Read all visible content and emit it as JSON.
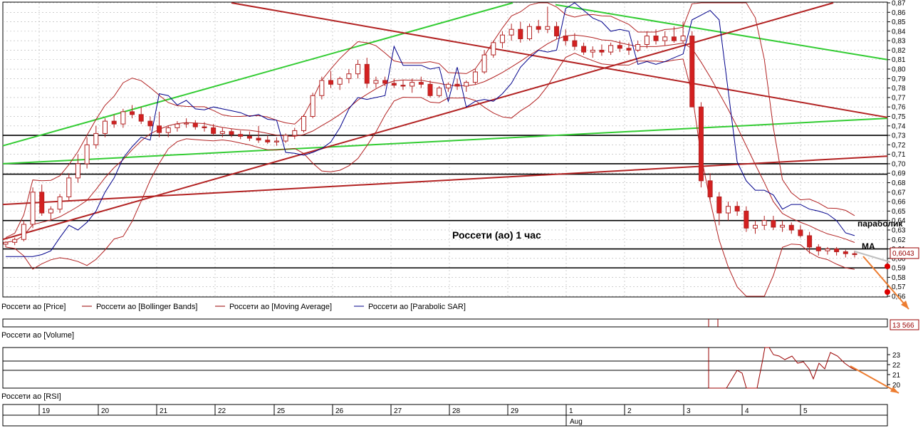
{
  "chart_data": {
    "type": "candlestick",
    "title": "Россети (ао)   1 час",
    "legend": [
      {
        "label": "Россети ао [Price]",
        "color": "#9a0000"
      },
      {
        "label": "Россети ао [Bollinger Bands]",
        "color": "#9a0000"
      },
      {
        "label": "Россети ао [Moving Average]",
        "color": "#9a0000"
      },
      {
        "label": "Россети ао [Parabolic SAR]",
        "color": "#00008b"
      }
    ],
    "price_axis": {
      "min": 0.56,
      "max": 0.87,
      "ticks": [
        "0,87",
        "0,86",
        "0,85",
        "0,84",
        "0,83",
        "0,82",
        "0,81",
        "0,80",
        "0,79",
        "0,78",
        "0,77",
        "0,76",
        "0,75",
        "0,74",
        "0,73",
        "0,72",
        "0,71",
        "0,70",
        "0,69",
        "0,68",
        "0,67",
        "0,66",
        "0,65",
        "0,64",
        "0,63",
        "0,62",
        "0,61",
        "0,60",
        "0,59",
        "0,58",
        "0,57",
        "0,56"
      ]
    },
    "last_price": "0,6043",
    "annotations": {
      "parabolic": "параболик",
      "ma": "МА"
    },
    "volume_label": "Россети ао [Volume]",
    "volume_value": "13 566",
    "rsi_label": "Россети ао [RSI]",
    "rsi_axis": {
      "ticks": [
        "23",
        "22",
        "21",
        "20"
      ],
      "levels": [
        22.5,
        20.5
      ]
    },
    "date_axis": {
      "labels": [
        "19",
        "20",
        "21",
        "22",
        "25",
        "26",
        "27",
        "28",
        "29",
        "1",
        "2",
        "3",
        "4",
        "5"
      ],
      "month_label": "Aug"
    },
    "horizontal_levels": [
      0.73,
      0.7,
      0.689,
      0.64,
      0.61,
      0.59
    ],
    "candles": [
      [
        0.615,
        0.618,
        0.612,
        0.617
      ],
      [
        0.617,
        0.622,
        0.614,
        0.62
      ],
      [
        0.62,
        0.64,
        0.618,
        0.636
      ],
      [
        0.636,
        0.675,
        0.632,
        0.67
      ],
      [
        0.67,
        0.678,
        0.645,
        0.648
      ],
      [
        0.648,
        0.655,
        0.64,
        0.652
      ],
      [
        0.652,
        0.668,
        0.648,
        0.665
      ],
      [
        0.665,
        0.69,
        0.66,
        0.685
      ],
      [
        0.685,
        0.71,
        0.68,
        0.7
      ],
      [
        0.7,
        0.728,
        0.695,
        0.72
      ],
      [
        0.72,
        0.74,
        0.716,
        0.732
      ],
      [
        0.732,
        0.748,
        0.728,
        0.745
      ],
      [
        0.745,
        0.752,
        0.738,
        0.742
      ],
      [
        0.742,
        0.758,
        0.738,
        0.755
      ],
      [
        0.755,
        0.762,
        0.748,
        0.752
      ],
      [
        0.752,
        0.76,
        0.742,
        0.745
      ],
      [
        0.745,
        0.75,
        0.735,
        0.74
      ],
      [
        0.74,
        0.755,
        0.728,
        0.733
      ],
      [
        0.733,
        0.74,
        0.728,
        0.738
      ],
      [
        0.738,
        0.745,
        0.734,
        0.742
      ],
      [
        0.742,
        0.748,
        0.738,
        0.743
      ],
      [
        0.743,
        0.746,
        0.736,
        0.739
      ],
      [
        0.739,
        0.744,
        0.734,
        0.738
      ],
      [
        0.738,
        0.742,
        0.73,
        0.732
      ],
      [
        0.732,
        0.738,
        0.728,
        0.734
      ],
      [
        0.734,
        0.737,
        0.728,
        0.731
      ],
      [
        0.731,
        0.735,
        0.726,
        0.729
      ],
      [
        0.729,
        0.734,
        0.724,
        0.727
      ],
      [
        0.727,
        0.74,
        0.722,
        0.725
      ],
      [
        0.725,
        0.73,
        0.721,
        0.723
      ],
      [
        0.723,
        0.728,
        0.719,
        0.724
      ],
      [
        0.724,
        0.732,
        0.722,
        0.73
      ],
      [
        0.73,
        0.738,
        0.726,
        0.735
      ],
      [
        0.735,
        0.752,
        0.733,
        0.75
      ],
      [
        0.75,
        0.775,
        0.748,
        0.772
      ],
      [
        0.772,
        0.792,
        0.768,
        0.788
      ],
      [
        0.788,
        0.798,
        0.78,
        0.784
      ],
      [
        0.784,
        0.792,
        0.778,
        0.79
      ],
      [
        0.79,
        0.8,
        0.785,
        0.795
      ],
      [
        0.795,
        0.81,
        0.79,
        0.805
      ],
      [
        0.805,
        0.812,
        0.78,
        0.785
      ],
      [
        0.785,
        0.792,
        0.78,
        0.788
      ],
      [
        0.788,
        0.792,
        0.782,
        0.785
      ],
      [
        0.785,
        0.79,
        0.78,
        0.783
      ],
      [
        0.783,
        0.788,
        0.778,
        0.782
      ],
      [
        0.782,
        0.79,
        0.775,
        0.786
      ],
      [
        0.786,
        0.792,
        0.78,
        0.784
      ],
      [
        0.784,
        0.788,
        0.77,
        0.772
      ],
      [
        0.772,
        0.782,
        0.77,
        0.78
      ],
      [
        0.78,
        0.786,
        0.776,
        0.784
      ],
      [
        0.784,
        0.79,
        0.778,
        0.782
      ],
      [
        0.782,
        0.788,
        0.776,
        0.786
      ],
      [
        0.786,
        0.8,
        0.784,
        0.797
      ],
      [
        0.797,
        0.82,
        0.795,
        0.815
      ],
      [
        0.815,
        0.83,
        0.812,
        0.828
      ],
      [
        0.828,
        0.84,
        0.822,
        0.836
      ],
      [
        0.836,
        0.848,
        0.83,
        0.842
      ],
      [
        0.842,
        0.85,
        0.828,
        0.832
      ],
      [
        0.832,
        0.848,
        0.83,
        0.845
      ],
      [
        0.845,
        0.852,
        0.838,
        0.842
      ],
      [
        0.842,
        0.866,
        0.838,
        0.845
      ],
      [
        0.845,
        0.85,
        0.832,
        0.835
      ],
      [
        0.835,
        0.842,
        0.825,
        0.83
      ],
      [
        0.83,
        0.838,
        0.82,
        0.824
      ],
      [
        0.824,
        0.828,
        0.815,
        0.818
      ],
      [
        0.818,
        0.824,
        0.812,
        0.82
      ],
      [
        0.82,
        0.826,
        0.814,
        0.818
      ],
      [
        0.818,
        0.828,
        0.815,
        0.825
      ],
      [
        0.825,
        0.83,
        0.818,
        0.822
      ],
      [
        0.822,
        0.828,
        0.815,
        0.82
      ],
      [
        0.82,
        0.83,
        0.818,
        0.826
      ],
      [
        0.826,
        0.84,
        0.822,
        0.835
      ],
      [
        0.835,
        0.842,
        0.826,
        0.83
      ],
      [
        0.83,
        0.84,
        0.825,
        0.834
      ],
      [
        0.834,
        0.845,
        0.828,
        0.83
      ],
      [
        0.83,
        0.85,
        0.828,
        0.835
      ],
      [
        0.835,
        0.84,
        0.76,
        0.76
      ],
      [
        0.76,
        0.765,
        0.675,
        0.682
      ],
      [
        0.682,
        0.69,
        0.66,
        0.665
      ],
      [
        0.665,
        0.67,
        0.635,
        0.648
      ],
      [
        0.648,
        0.66,
        0.64,
        0.655
      ],
      [
        0.655,
        0.66,
        0.645,
        0.65
      ],
      [
        0.65,
        0.655,
        0.628,
        0.632
      ],
      [
        0.632,
        0.64,
        0.626,
        0.635
      ],
      [
        0.635,
        0.645,
        0.63,
        0.64
      ],
      [
        0.64,
        0.645,
        0.63,
        0.633
      ],
      [
        0.633,
        0.64,
        0.628,
        0.635
      ],
      [
        0.635,
        0.638,
        0.626,
        0.63
      ],
      [
        0.63,
        0.635,
        0.622,
        0.624
      ],
      [
        0.624,
        0.628,
        0.605,
        0.612
      ],
      [
        0.612,
        0.615,
        0.603,
        0.608
      ],
      [
        0.608,
        0.612,
        0.604,
        0.61
      ],
      [
        0.61,
        0.612,
        0.603,
        0.607
      ],
      [
        0.607,
        0.609,
        0.601,
        0.605
      ],
      [
        0.605,
        0.608,
        0.601,
        0.604
      ]
    ]
  }
}
